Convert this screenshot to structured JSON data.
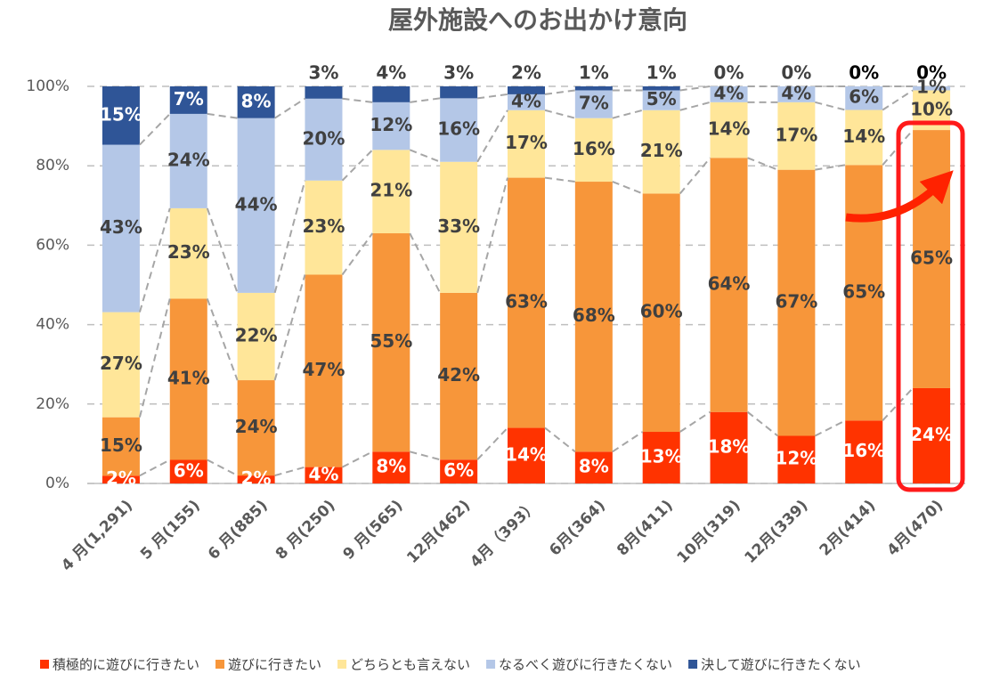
{
  "chart_data": {
    "type": "stacked100",
    "title": "屋外施設へのお出かけ意向",
    "categories": [
      "4 月(1,291)",
      "5 月(155)",
      "6 月(885)",
      "8 月(250)",
      "9 月(565)",
      "12月(462)",
      "4月（393）",
      "6月(364)",
      "8月(411)",
      "10月(319)",
      "12月(339)",
      "2月(414)",
      "4月(470)"
    ],
    "ylim": [
      0,
      100
    ],
    "yticks": [
      {
        "value": 0,
        "label": "0%"
      },
      {
        "value": 20,
        "label": "20%"
      },
      {
        "value": 40,
        "label": "40%"
      },
      {
        "value": 60,
        "label": "60%"
      },
      {
        "value": 80,
        "label": "80%"
      },
      {
        "value": 100,
        "label": "100%"
      }
    ],
    "grid": true,
    "series": [
      {
        "name": "積極的に遊びに行きたい",
        "color": "#ff3300",
        "values": [
          2,
          6,
          2,
          4,
          8,
          6,
          14,
          8,
          13,
          18,
          12,
          16,
          24
        ],
        "value_labels": [
          "2%",
          "6%",
          "2%",
          "4%",
          "8%",
          "6%",
          "14%",
          "8%",
          "13%",
          "18%",
          "12%",
          "16%",
          "24%"
        ]
      },
      {
        "name": "遊びに行きたい",
        "color": "#f7963a",
        "values": [
          15,
          41,
          24,
          47,
          55,
          42,
          63,
          68,
          60,
          64,
          67,
          65,
          65
        ],
        "value_labels": [
          "15%",
          "41%",
          "24%",
          "47%",
          "55%",
          "42%",
          "63%",
          "68%",
          "60%",
          "64%",
          "67%",
          "65%",
          "65%"
        ]
      },
      {
        "name": "どちらとも言えない",
        "color": "#ffe699",
        "values": [
          27,
          23,
          22,
          23,
          21,
          33,
          17,
          16,
          21,
          14,
          17,
          14,
          10
        ],
        "value_labels": [
          "27%",
          "23%",
          "22%",
          "23%",
          "21%",
          "33%",
          "17%",
          "16%",
          "21%",
          "14%",
          "17%",
          "14%",
          "10%"
        ]
      },
      {
        "name": "なるべく遊びに行きたくない",
        "color": "#b4c7e7",
        "values": [
          43,
          24,
          44,
          20,
          12,
          16,
          4,
          7,
          5,
          4,
          4,
          6,
          1
        ],
        "value_labels": [
          "43%",
          "24%",
          "44%",
          "20%",
          "12%",
          "16%",
          "4%",
          "7%",
          "5%",
          "4%",
          "4%",
          "6%",
          "1%"
        ]
      },
      {
        "name": "決して遊びに行きたくない",
        "color": "#2f5597",
        "values": [
          15,
          7,
          8,
          3,
          4,
          3,
          2,
          1,
          1,
          0,
          0,
          0,
          0
        ],
        "value_labels": [
          "15%",
          "7%",
          "8%",
          "3%",
          "4%",
          "3%",
          "2%",
          "1%",
          "1%",
          "0%",
          "0%",
          "0%",
          "0%"
        ]
      }
    ]
  }
}
